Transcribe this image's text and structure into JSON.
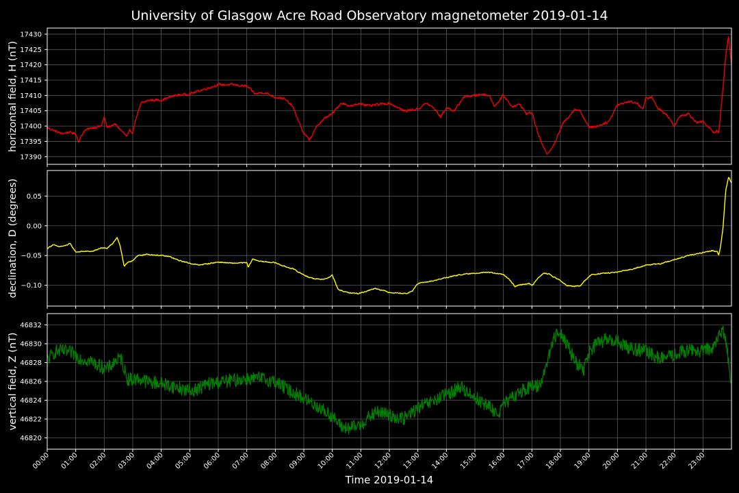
{
  "title": "University of Glasgow Acre Road Observatory magnetometer 2019-01-14",
  "xlabel": "Time 2019-01-14",
  "colors": {
    "background": "#000000",
    "H": "#ff0000",
    "D": "#ffff00",
    "Z": "#008000",
    "grid": "#5a5a5a"
  },
  "chart_data": [
    {
      "type": "line",
      "ylabel": "horizontal field, H (nT)",
      "color": "#ff0000",
      "grid": true,
      "xlim": [
        0,
        24
      ],
      "ylim": [
        17387.5,
        17432
      ],
      "yticks": [
        17390,
        17395,
        17400,
        17405,
        17410,
        17415,
        17420,
        17425,
        17430
      ],
      "ytick_labels": [
        "17390",
        "17395",
        "17400",
        "17405",
        "17410",
        "17415",
        "17420",
        "17425",
        "17430"
      ],
      "x": [
        0,
        0.25,
        0.5,
        0.75,
        1.0,
        1.1,
        1.3,
        1.6,
        1.9,
        2.0,
        2.1,
        2.2,
        2.4,
        2.6,
        2.8,
        2.9,
        3.0,
        3.1,
        3.3,
        3.6,
        4.0,
        4.5,
        5.0,
        5.5,
        6.0,
        6.5,
        7.0,
        7.3,
        7.6,
        8.0,
        8.3,
        8.6,
        8.8,
        9.0,
        9.2,
        9.5,
        9.8,
        10.0,
        10.3,
        10.7,
        11.0,
        11.3,
        11.6,
        12.0,
        12.5,
        13.0,
        13.3,
        13.6,
        13.8,
        14.0,
        14.3,
        14.6,
        15.0,
        15.3,
        15.5,
        15.7,
        16.0,
        16.3,
        16.6,
        16.8,
        17.0,
        17.2,
        17.4,
        17.55,
        17.8,
        18.1,
        18.5,
        18.7,
        19.0,
        19.3,
        19.7,
        20.0,
        20.4,
        20.7,
        20.9,
        21.0,
        21.2,
        21.4,
        21.7,
        22.0,
        22.2,
        22.5,
        22.8,
        23.0,
        23.2,
        23.4,
        23.5,
        23.55,
        23.7,
        23.8,
        23.9,
        24.0
      ],
      "values": [
        17399.5,
        17398.5,
        17397.5,
        17398.0,
        17397.5,
        17395.0,
        17398.5,
        17399.5,
        17400.0,
        17403.0,
        17399.5,
        17400.0,
        17400.5,
        17398.5,
        17396.5,
        17398.5,
        17398.0,
        17402.0,
        17407.5,
        17408.5,
        17408.5,
        17410.0,
        17410.5,
        17412.0,
        17413.5,
        17413.5,
        17413.0,
        17410.5,
        17411.0,
        17409.5,
        17409.0,
        17406.5,
        17402.0,
        17397.5,
        17395.5,
        17400.5,
        17403.0,
        17404.0,
        17407.5,
        17406.5,
        17407.5,
        17406.5,
        17407.0,
        17407.5,
        17405.0,
        17405.5,
        17407.5,
        17405.5,
        17403.0,
        17406.0,
        17405.0,
        17409.5,
        17410.0,
        17410.5,
        17410.0,
        17406.5,
        17410.0,
        17406.5,
        17407.0,
        17404.0,
        17404.5,
        17398.0,
        17393.0,
        17391.0,
        17394.5,
        17401.0,
        17405.5,
        17405.0,
        17399.5,
        17400.0,
        17401.5,
        17407.0,
        17408.0,
        17407.5,
        17405.5,
        17409.0,
        17409.5,
        17406.0,
        17404.0,
        17400.0,
        17403.5,
        17404.0,
        17401.0,
        17401.5,
        17399.5,
        17398.0,
        17398.5,
        17397.5,
        17412.0,
        17423.0,
        17429.5,
        17420.0
      ],
      "noise": 0.6
    },
    {
      "type": "line",
      "ylabel": "declination, D (degrees)",
      "color": "#ffff00",
      "grid": true,
      "xlim": [
        0,
        24
      ],
      "ylim": [
        -0.135,
        0.093
      ],
      "yticks": [
        -0.1,
        -0.05,
        0.0,
        0.05
      ],
      "ytick_labels": [
        "−0.10",
        "−0.05",
        "0.00",
        "0.05"
      ],
      "x": [
        0,
        0.2,
        0.4,
        0.6,
        0.8,
        1.0,
        1.3,
        1.6,
        1.9,
        2.1,
        2.3,
        2.45,
        2.55,
        2.7,
        2.8,
        3.0,
        3.2,
        3.5,
        4.0,
        4.3,
        4.6,
        5.0,
        5.3,
        5.6,
        6.0,
        6.5,
        7.0,
        7.05,
        7.2,
        7.5,
        8.0,
        8.3,
        8.6,
        8.9,
        9.2,
        9.5,
        9.8,
        10.0,
        10.2,
        10.5,
        10.9,
        11.2,
        11.5,
        11.8,
        12.0,
        12.3,
        12.6,
        12.8,
        13.0,
        13.5,
        14.0,
        14.5,
        15.0,
        15.3,
        15.6,
        16.0,
        16.2,
        16.4,
        16.7,
        16.9,
        17.0,
        17.2,
        17.4,
        17.6,
        17.8,
        18.0,
        18.2,
        18.4,
        18.7,
        18.9,
        19.1,
        19.5,
        20.0,
        20.5,
        21.0,
        21.5,
        22.0,
        22.5,
        23.0,
        23.3,
        23.5,
        23.55,
        23.6,
        23.7,
        23.8,
        23.9,
        24.0
      ],
      "values": [
        -0.038,
        -0.032,
        -0.035,
        -0.034,
        -0.03,
        -0.044,
        -0.043,
        -0.043,
        -0.037,
        -0.038,
        -0.03,
        -0.019,
        -0.032,
        -0.068,
        -0.063,
        -0.058,
        -0.05,
        -0.048,
        -0.05,
        -0.052,
        -0.058,
        -0.063,
        -0.066,
        -0.064,
        -0.061,
        -0.063,
        -0.062,
        -0.07,
        -0.056,
        -0.06,
        -0.062,
        -0.068,
        -0.072,
        -0.08,
        -0.087,
        -0.09,
        -0.089,
        -0.083,
        -0.107,
        -0.112,
        -0.114,
        -0.11,
        -0.105,
        -0.109,
        -0.112,
        -0.113,
        -0.114,
        -0.11,
        -0.097,
        -0.093,
        -0.087,
        -0.082,
        -0.08,
        -0.078,
        -0.079,
        -0.082,
        -0.09,
        -0.102,
        -0.098,
        -0.097,
        -0.101,
        -0.088,
        -0.08,
        -0.081,
        -0.087,
        -0.092,
        -0.1,
        -0.102,
        -0.101,
        -0.09,
        -0.082,
        -0.08,
        -0.078,
        -0.073,
        -0.066,
        -0.064,
        -0.057,
        -0.05,
        -0.045,
        -0.042,
        -0.043,
        -0.05,
        -0.04,
        -0.005,
        0.06,
        0.082,
        0.072
      ],
      "noise": 0.0012
    },
    {
      "type": "line",
      "ylabel": "vertical field, Z (nT)",
      "color": "#008000",
      "grid": true,
      "xlim": [
        0,
        24
      ],
      "ylim": [
        46818.8,
        46833.2
      ],
      "yticks": [
        46820,
        46822,
        46824,
        46826,
        46828,
        46830,
        46832
      ],
      "ytick_labels": [
        "46820",
        "46822",
        "46824",
        "46826",
        "46828",
        "46830",
        "46832"
      ],
      "x": [
        0,
        0.3,
        0.6,
        0.9,
        1.2,
        1.5,
        1.8,
        2.1,
        2.4,
        2.6,
        2.8,
        3.0,
        3.2,
        3.6,
        4.0,
        4.5,
        5.0,
        5.3,
        5.6,
        6.0,
        6.5,
        7.0,
        7.5,
        8.0,
        8.5,
        9.0,
        9.5,
        10.0,
        10.3,
        10.6,
        11.0,
        11.3,
        11.6,
        12.0,
        12.5,
        13.0,
        13.5,
        14.0,
        14.5,
        15.0,
        15.5,
        15.8,
        16.0,
        16.3,
        16.6,
        17.0,
        17.3,
        17.6,
        17.8,
        18.0,
        18.2,
        18.5,
        18.8,
        19.0,
        19.3,
        19.6,
        20.0,
        20.5,
        21.0,
        21.5,
        22.0,
        22.3,
        22.6,
        23.0,
        23.3,
        23.5,
        23.7,
        23.85,
        24.0
      ],
      "values": [
        46828.3,
        46829.2,
        46829.2,
        46829.0,
        46828.4,
        46828.2,
        46827.7,
        46827.3,
        46828.2,
        46828.4,
        46826.3,
        46826.2,
        46826.3,
        46825.9,
        46825.8,
        46825.4,
        46825.0,
        46825.2,
        46825.7,
        46825.9,
        46826.1,
        46826.3,
        46826.3,
        46826.0,
        46825.0,
        46824.2,
        46823.3,
        46822.3,
        46821.2,
        46821.0,
        46821.4,
        46822.2,
        46822.8,
        46822.4,
        46822.0,
        46823.2,
        46823.8,
        46824.6,
        46825.4,
        46824.3,
        46823.3,
        46822.5,
        46823.5,
        46824.2,
        46825.0,
        46825.4,
        46825.7,
        46828.8,
        46830.8,
        46831.3,
        46830.2,
        46828.2,
        46827.2,
        46829.0,
        46830.1,
        46830.4,
        46830.2,
        46829.5,
        46829.2,
        46828.4,
        46828.8,
        46829.2,
        46829.3,
        46829.2,
        46829.6,
        46830.3,
        46831.6,
        46829.4,
        46825.5
      ],
      "noise": 0.45
    }
  ],
  "xaxis": {
    "ticks": [
      0,
      1,
      2,
      3,
      4,
      5,
      6,
      7,
      8,
      9,
      10,
      11,
      12,
      13,
      14,
      15,
      16,
      17,
      18,
      19,
      20,
      21,
      22,
      23
    ],
    "tick_labels": [
      "00:00",
      "01:00",
      "02:00",
      "03:00",
      "04:00",
      "05:00",
      "06:00",
      "07:00",
      "08:00",
      "09:00",
      "10:00",
      "11:00",
      "12:00",
      "13:00",
      "14:00",
      "15:00",
      "16:00",
      "17:00",
      "18:00",
      "19:00",
      "20:00",
      "21:00",
      "22:00",
      "23:00"
    ]
  }
}
